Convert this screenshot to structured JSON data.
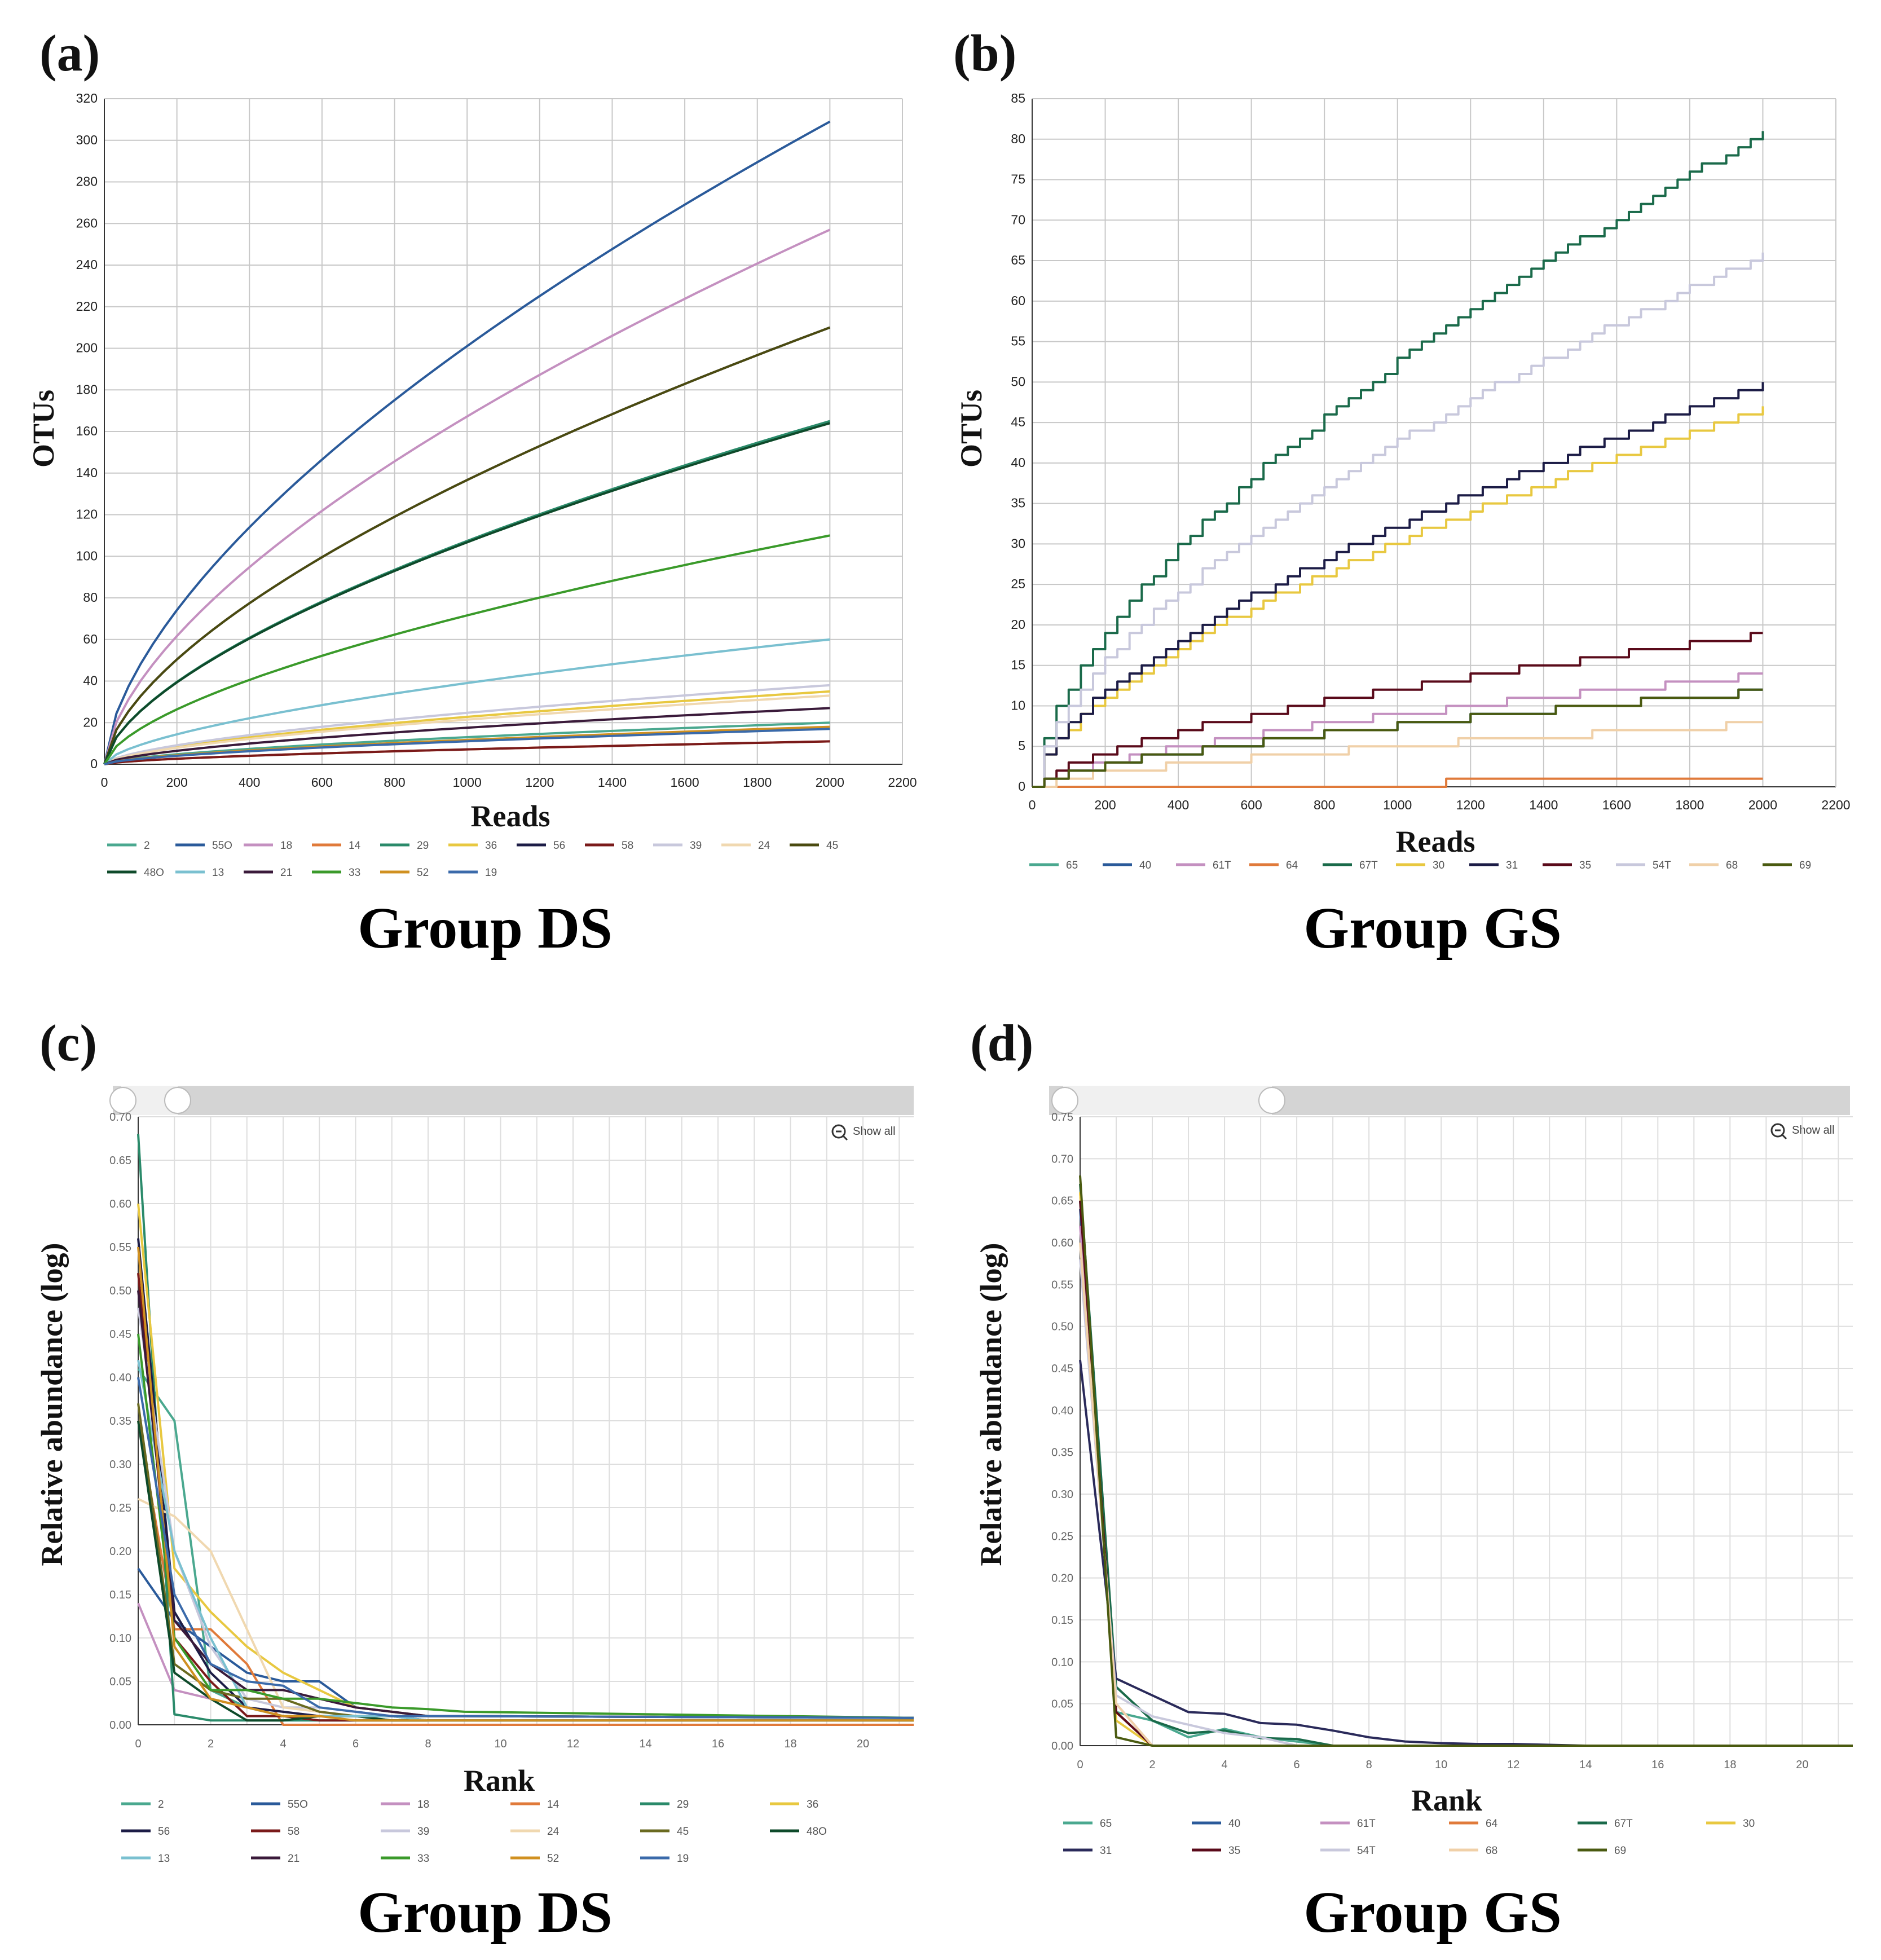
{
  "chart_data": [
    {
      "id": "a",
      "panel_label": "(a)",
      "group_title": "Group DS",
      "type": "line",
      "xlabel": "Reads",
      "ylabel": "OTUs",
      "xlim": [
        0,
        2200
      ],
      "ylim": [
        0,
        320
      ],
      "x_ticks": [
        "0",
        "200",
        "400",
        "600",
        "800",
        "1000",
        "1200",
        "1400",
        "1600",
        "1800",
        "2000",
        "2200"
      ],
      "y_ticks": [
        "0",
        "20",
        "40",
        "60",
        "80",
        "100",
        "120",
        "140",
        "160",
        "180",
        "200",
        "220",
        "240",
        "260",
        "280",
        "300",
        "320"
      ],
      "x_max_sample": 2000,
      "series": [
        {
          "name": "2",
          "color": "#4aa88f",
          "final": 20
        },
        {
          "name": "55O",
          "color": "#2a5a9a",
          "final": 309
        },
        {
          "name": "18",
          "color": "#c490c0",
          "final": 257
        },
        {
          "name": "14",
          "color": "#e07a3a",
          "final": 11
        },
        {
          "name": "29",
          "color": "#2a8a6a",
          "final": 165
        },
        {
          "name": "36",
          "color": "#e8c840",
          "final": 35
        },
        {
          "name": "56",
          "color": "#1c1c46",
          "final": 210
        },
        {
          "name": "58",
          "color": "#7a1a1a",
          "final": 11
        },
        {
          "name": "39",
          "color": "#c8c8dc",
          "final": 38
        },
        {
          "name": "24",
          "color": "#f0d8b0",
          "final": 33
        },
        {
          "name": "45",
          "color": "#4a4a10",
          "final": 210
        },
        {
          "name": "48O",
          "color": "#0e4a2a",
          "final": 164
        },
        {
          "name": "13",
          "color": "#7ac0d0",
          "final": 60
        },
        {
          "name": "21",
          "color": "#3a1a3a",
          "final": 27
        },
        {
          "name": "33",
          "color": "#3a9a2a",
          "final": 110
        },
        {
          "name": "52",
          "color": "#d09020",
          "final": 18
        },
        {
          "name": "19",
          "color": "#3a6aaa",
          "final": 17
        }
      ],
      "legend": [
        "2",
        "55O",
        "18",
        "14",
        "29",
        "36",
        "56",
        "58",
        "39",
        "24",
        "45",
        "48O",
        "13",
        "21",
        "33",
        "52",
        "19"
      ]
    },
    {
      "id": "b",
      "panel_label": "(b)",
      "group_title": "Group GS",
      "type": "line",
      "xlabel": "Reads",
      "ylabel": "OTUs",
      "xlim": [
        0,
        2200
      ],
      "ylim": [
        0,
        85
      ],
      "x_ticks": [
        "0",
        "200",
        "400",
        "600",
        "800",
        "1000",
        "1200",
        "1400",
        "1600",
        "1800",
        "2000",
        "2200"
      ],
      "y_ticks": [
        "0",
        "5",
        "10",
        "15",
        "20",
        "25",
        "30",
        "35",
        "40",
        "45",
        "50",
        "55",
        "60",
        "65",
        "70",
        "75",
        "80",
        "85"
      ],
      "x_max_sample": 2000,
      "series": [
        {
          "name": "65",
          "color": "#4aa88f",
          "final": 12
        },
        {
          "name": "40",
          "color": "#2a5a9a",
          "final": 12
        },
        {
          "name": "61T",
          "color": "#c490c0",
          "final": 14
        },
        {
          "name": "64",
          "color": "#e07a3a",
          "final": 1
        },
        {
          "name": "67T",
          "color": "#1a6a4a",
          "final": 81
        },
        {
          "name": "30",
          "color": "#e8c840",
          "final": 47
        },
        {
          "name": "31",
          "color": "#1c1c46",
          "final": 50
        },
        {
          "name": "35",
          "color": "#5a0a1a",
          "final": 19
        },
        {
          "name": "54T",
          "color": "#c8c8dc",
          "final": 66
        },
        {
          "name": "68",
          "color": "#f0d0a8",
          "final": 8
        },
        {
          "name": "69",
          "color": "#4a5a10",
          "final": 12
        }
      ],
      "legend": [
        "65",
        "40",
        "61T",
        "64",
        "67T",
        "30",
        "31",
        "35",
        "54T",
        "68",
        "69"
      ]
    },
    {
      "id": "c",
      "panel_label": "(c)",
      "group_title": "Group DS",
      "type": "line",
      "xlabel": "Rank",
      "ylabel": "Relative abundance (log)",
      "xlim": [
        0,
        21.4
      ],
      "ylim": [
        0,
        0.7
      ],
      "x_ticks": [
        "0",
        "2",
        "4",
        "6",
        "8",
        "10",
        "12",
        "14",
        "16",
        "18",
        "20"
      ],
      "y_ticks": [
        "0.00",
        "0.05",
        "0.10",
        "0.15",
        "0.20",
        "0.25",
        "0.30",
        "0.35",
        "0.40",
        "0.45",
        "0.50",
        "0.55",
        "0.60",
        "0.65",
        "0.70"
      ],
      "show_all_label": "Show all",
      "series": [
        {
          "name": "2",
          "color": "#4aa88f",
          "values": [
            0.41,
            0.35,
            0.04,
            0.02,
            0.01,
            0.01,
            0.01,
            0.005,
            0.005,
            0.005
          ]
        },
        {
          "name": "55O",
          "color": "#2a5a9a",
          "values": [
            0.18,
            0.12,
            0.09,
            0.06,
            0.05,
            0.05,
            0.02,
            0.015,
            0.01,
            0.01
          ]
        },
        {
          "name": "18",
          "color": "#c490c0",
          "values": [
            0.14,
            0.04,
            0.03,
            0.02,
            0.015,
            0.01,
            0.01,
            0.01,
            0.005,
            0.005
          ]
        },
        {
          "name": "14",
          "color": "#e07a3a",
          "values": [
            0.35,
            0.11,
            0.11,
            0.07,
            0.0,
            0.0,
            0.0,
            0.0,
            0.0,
            0.0
          ]
        },
        {
          "name": "29",
          "color": "#2a8a6a",
          "values": [
            0.68,
            0.012,
            0.005,
            0.005,
            0.005,
            0.005,
            0.005,
            0.005,
            0.005,
            0.005
          ]
        },
        {
          "name": "36",
          "color": "#e8c840",
          "values": [
            0.6,
            0.18,
            0.13,
            0.09,
            0.06,
            0.04,
            0.02,
            0.015,
            0.01,
            0.01
          ]
        },
        {
          "name": "56",
          "color": "#1c1c46",
          "values": [
            0.56,
            0.13,
            0.06,
            0.02,
            0.015,
            0.01,
            0.01,
            0.01,
            0.005,
            0.005
          ]
        },
        {
          "name": "58",
          "color": "#7a1a1a",
          "values": [
            0.52,
            0.1,
            0.05,
            0.01,
            0.01,
            0.005,
            0.005,
            0.005,
            0.005,
            0.005
          ]
        },
        {
          "name": "39",
          "color": "#c8c8dc",
          "values": [
            0.48,
            0.2,
            0.09,
            0.03,
            0.02,
            0.02,
            0.015,
            0.01,
            0.01,
            0.01
          ]
        },
        {
          "name": "24",
          "color": "#f0d8b0",
          "values": [
            0.26,
            0.24,
            0.2,
            0.11,
            0.02,
            0.015,
            0.01,
            0.01,
            0.01,
            0.01
          ]
        },
        {
          "name": "45",
          "color": "#6a6a20",
          "values": [
            0.37,
            0.07,
            0.04,
            0.03,
            0.03,
            0.015,
            0.01,
            0.01,
            0.01,
            0.01
          ]
        },
        {
          "name": "48O",
          "color": "#0e4a2a",
          "values": [
            0.35,
            0.06,
            0.03,
            0.005,
            0.005,
            0.01,
            0.01,
            0.005,
            0.005,
            0.005
          ]
        },
        {
          "name": "13",
          "color": "#7ac0d0",
          "values": [
            0.42,
            0.2,
            0.1,
            0.02,
            0.01,
            0.01,
            0.01,
            0.01,
            0.005,
            0.005
          ]
        },
        {
          "name": "21",
          "color": "#3a1a3a",
          "values": [
            0.5,
            0.12,
            0.07,
            0.04,
            0.04,
            0.03,
            0.02,
            0.015,
            0.01,
            0.01
          ]
        },
        {
          "name": "33",
          "color": "#3a9a2a",
          "values": [
            0.45,
            0.1,
            0.04,
            0.04,
            0.03,
            0.03,
            0.025,
            0.02,
            0.018,
            0.015
          ]
        },
        {
          "name": "52",
          "color": "#d09020",
          "values": [
            0.55,
            0.09,
            0.03,
            0.02,
            0.01,
            0.01,
            0.005,
            0.005,
            0.005,
            0.005
          ]
        },
        {
          "name": "19",
          "color": "#3a6aaa",
          "values": [
            0.4,
            0.15,
            0.07,
            0.05,
            0.045,
            0.02,
            0.015,
            0.01,
            0.01,
            0.01
          ]
        }
      ],
      "legend": [
        "2",
        "55O",
        "18",
        "14",
        "29",
        "36",
        "56",
        "58",
        "39",
        "24",
        "45",
        "48O",
        "13",
        "21",
        "33",
        "52",
        "19"
      ]
    },
    {
      "id": "d",
      "panel_label": "(d)",
      "group_title": "Group GS",
      "type": "line",
      "xlabel": "Rank",
      "ylabel": "Relative abundance (log)",
      "xlim": [
        0,
        21.4
      ],
      "ylim": [
        0,
        0.75
      ],
      "x_ticks": [
        "0",
        "2",
        "4",
        "6",
        "8",
        "10",
        "12",
        "14",
        "16",
        "18",
        "20"
      ],
      "y_ticks": [
        "0.00",
        "0.05",
        "0.10",
        "0.15",
        "0.20",
        "0.25",
        "0.30",
        "0.35",
        "0.40",
        "0.45",
        "0.50",
        "0.55",
        "0.60",
        "0.65",
        "0.70",
        "0.75"
      ],
      "show_all_label": "Show all",
      "series": [
        {
          "name": "65",
          "color": "#4aa88f",
          "values": [
            0.65,
            0.04,
            0.03,
            0.01,
            0.02,
            0.01,
            0.005,
            0.0
          ]
        },
        {
          "name": "40",
          "color": "#2a5a9a",
          "values": [
            0.64,
            0.04,
            0.0,
            0.0,
            0.0,
            0.0,
            0.0,
            0.0
          ]
        },
        {
          "name": "61T",
          "color": "#c490c0",
          "values": [
            0.62,
            0.05,
            0.0,
            0.0,
            0.0,
            0.0,
            0.0,
            0.0
          ]
        },
        {
          "name": "64",
          "color": "#e07a3a",
          "values": [
            0.66,
            0.04,
            0.0,
            0.0,
            0.0,
            0.0,
            0.0,
            0.0
          ]
        },
        {
          "name": "67T",
          "color": "#1a6a4a",
          "values": [
            0.67,
            0.07,
            0.03,
            0.015,
            0.018,
            0.009,
            0.008,
            0.0
          ]
        },
        {
          "name": "30",
          "color": "#e8c840",
          "values": [
            0.66,
            0.03,
            0.0,
            0.0,
            0.0,
            0.0,
            0.0,
            0.0
          ]
        },
        {
          "name": "31",
          "color": "#2a2a5a",
          "values": [
            0.46,
            0.08,
            0.06,
            0.04,
            0.038,
            0.027,
            0.025,
            0.018,
            0.01,
            0.005,
            0.003,
            0.002,
            0.002,
            0.001,
            0.0
          ]
        },
        {
          "name": "35",
          "color": "#5a0a1a",
          "values": [
            0.65,
            0.04,
            0.0,
            0.0,
            0.0,
            0.0,
            0.0,
            0.0
          ]
        },
        {
          "name": "54T",
          "color": "#c8c8dc",
          "values": [
            0.58,
            0.06,
            0.035,
            0.025,
            0.015,
            0.01,
            0.0,
            0.0
          ]
        },
        {
          "name": "68",
          "color": "#f0d0a8",
          "values": [
            0.6,
            0.05,
            0.0,
            0.0,
            0.0,
            0.0,
            0.0,
            0.0
          ]
        },
        {
          "name": "69",
          "color": "#4a5a10",
          "values": [
            0.68,
            0.01,
            0.0,
            0.0,
            0.0,
            0.0,
            0.0,
            0.0
          ]
        }
      ],
      "legend": [
        "65",
        "40",
        "61T",
        "64",
        "67T",
        "30",
        "31",
        "35",
        "54T",
        "68",
        "69"
      ]
    }
  ]
}
